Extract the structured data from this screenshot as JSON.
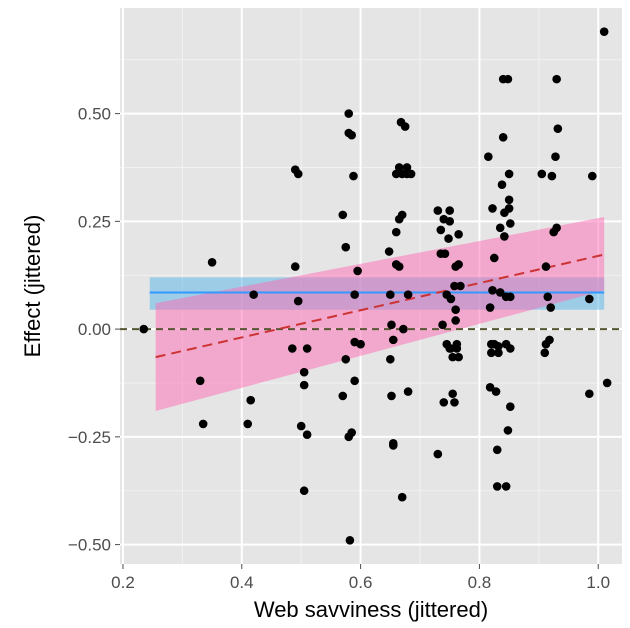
{
  "chart_data": {
    "type": "scatter",
    "xlabel": "Web savviness (jittered)",
    "ylabel": "Effect (jittered)",
    "xlim": [
      0.195,
      1.04
    ],
    "ylim": [
      -0.545,
      0.745
    ],
    "x_ticks": [
      0.2,
      0.4,
      0.6,
      0.8,
      1.0
    ],
    "x_tick_labels": [
      "0.2",
      "0.4",
      "0.6",
      "0.8",
      "1.0"
    ],
    "y_ticks": [
      -0.5,
      -0.25,
      0.0,
      0.25,
      0.5
    ],
    "y_tick_labels": [
      "−0.50",
      "−0.25",
      "0.00",
      "0.25",
      "0.50"
    ],
    "grid": true,
    "points": [
      [
        0.235,
        0.0
      ],
      [
        0.33,
        -0.12
      ],
      [
        0.335,
        -0.22
      ],
      [
        0.35,
        0.155
      ],
      [
        0.41,
        -0.22
      ],
      [
        0.415,
        -0.165
      ],
      [
        0.42,
        0.08
      ],
      [
        0.485,
        -0.045
      ],
      [
        0.49,
        0.37
      ],
      [
        0.49,
        0.145
      ],
      [
        0.495,
        0.36
      ],
      [
        0.495,
        0.065
      ],
      [
        0.5,
        -0.225
      ],
      [
        0.505,
        -0.1
      ],
      [
        0.505,
        -0.13
      ],
      [
        0.505,
        -0.375
      ],
      [
        0.51,
        -0.045
      ],
      [
        0.51,
        -0.245
      ],
      [
        0.57,
        -0.155
      ],
      [
        0.57,
        0.265
      ],
      [
        0.575,
        0.19
      ],
      [
        0.575,
        -0.07
      ],
      [
        0.58,
        0.455
      ],
      [
        0.58,
        -0.25
      ],
      [
        0.58,
        0.5
      ],
      [
        0.582,
        -0.49
      ],
      [
        0.585,
        0.45
      ],
      [
        0.585,
        -0.24
      ],
      [
        0.588,
        0.355
      ],
      [
        0.59,
        -0.03
      ],
      [
        0.59,
        -0.12
      ],
      [
        0.59,
        0.08
      ],
      [
        0.595,
        0.135
      ],
      [
        0.6,
        -0.035
      ],
      [
        0.648,
        0.18
      ],
      [
        0.65,
        0.08
      ],
      [
        0.65,
        -0.07
      ],
      [
        0.652,
        0.01
      ],
      [
        0.652,
        -0.155
      ],
      [
        0.655,
        -0.265
      ],
      [
        0.655,
        -0.27
      ],
      [
        0.655,
        -0.025
      ],
      [
        0.66,
        0.225
      ],
      [
        0.66,
        0.36
      ],
      [
        0.66,
        0.15
      ],
      [
        0.665,
        0.375
      ],
      [
        0.665,
        0.255
      ],
      [
        0.665,
        0.145
      ],
      [
        0.668,
        0.48
      ],
      [
        0.67,
        0.36
      ],
      [
        0.67,
        0.265
      ],
      [
        0.67,
        -0.39
      ],
      [
        0.672,
        0.0
      ],
      [
        0.675,
        0.47
      ],
      [
        0.678,
        0.36
      ],
      [
        0.678,
        0.375
      ],
      [
        0.68,
        0.08
      ],
      [
        0.68,
        -0.145
      ],
      [
        0.685,
        0.36
      ],
      [
        0.73,
        -0.29
      ],
      [
        0.73,
        0.275
      ],
      [
        0.735,
        0.175
      ],
      [
        0.735,
        0.23
      ],
      [
        0.738,
        0.01
      ],
      [
        0.74,
        0.255
      ],
      [
        0.74,
        -0.17
      ],
      [
        0.742,
        0.175
      ],
      [
        0.745,
        0.08
      ],
      [
        0.745,
        -0.035
      ],
      [
        0.748,
        0.21
      ],
      [
        0.75,
        0.275
      ],
      [
        0.75,
        0.25
      ],
      [
        0.75,
        -0.045
      ],
      [
        0.752,
        0.07
      ],
      [
        0.752,
        -0.045
      ],
      [
        0.755,
        -0.065
      ],
      [
        0.755,
        -0.15
      ],
      [
        0.758,
        0.1
      ],
      [
        0.758,
        -0.17
      ],
      [
        0.76,
        0.145
      ],
      [
        0.76,
        0.045
      ],
      [
        0.76,
        0.02
      ],
      [
        0.762,
        -0.035
      ],
      [
        0.762,
        -0.045
      ],
      [
        0.765,
        0.22
      ],
      [
        0.765,
        0.15
      ],
      [
        0.765,
        -0.065
      ],
      [
        0.768,
        0.1
      ],
      [
        0.815,
        0.4
      ],
      [
        0.818,
        0.05
      ],
      [
        0.818,
        -0.135
      ],
      [
        0.82,
        -0.035
      ],
      [
        0.82,
        -0.055
      ],
      [
        0.822,
        0.28
      ],
      [
        0.822,
        0.09
      ],
      [
        0.825,
        0.165
      ],
      [
        0.825,
        -0.035
      ],
      [
        0.828,
        -0.145
      ],
      [
        0.83,
        -0.365
      ],
      [
        0.83,
        -0.28
      ],
      [
        0.832,
        -0.055
      ],
      [
        0.832,
        -0.04
      ],
      [
        0.835,
        0.085
      ],
      [
        0.835,
        0.235
      ],
      [
        0.838,
        0.335
      ],
      [
        0.84,
        0.58
      ],
      [
        0.84,
        0.445
      ],
      [
        0.842,
        0.27
      ],
      [
        0.842,
        0.215
      ],
      [
        0.845,
        -0.365
      ],
      [
        0.845,
        -0.035
      ],
      [
        0.845,
        0.075
      ],
      [
        0.848,
        -0.235
      ],
      [
        0.848,
        0.58
      ],
      [
        0.85,
        0.28
      ],
      [
        0.85,
        0.3
      ],
      [
        0.85,
        0.36
      ],
      [
        0.852,
        0.245
      ],
      [
        0.852,
        0.075
      ],
      [
        0.852,
        -0.18
      ],
      [
        0.852,
        -0.045
      ],
      [
        0.905,
        0.36
      ],
      [
        0.91,
        -0.055
      ],
      [
        0.912,
        0.145
      ],
      [
        0.912,
        -0.035
      ],
      [
        0.915,
        0.075
      ],
      [
        0.918,
        -0.025
      ],
      [
        0.92,
        0.05
      ],
      [
        0.922,
        0.355
      ],
      [
        0.925,
        0.225
      ],
      [
        0.928,
        0.4
      ],
      [
        0.93,
        0.235
      ],
      [
        0.93,
        0.58
      ],
      [
        0.932,
        0.465
      ],
      [
        0.985,
        0.07
      ],
      [
        0.985,
        -0.15
      ],
      [
        0.99,
        0.355
      ],
      [
        1.01,
        0.69
      ],
      [
        1.015,
        -0.125
      ]
    ],
    "flat_fit": {
      "x": [
        0.245,
        1.01
      ],
      "y": [
        0.085,
        0.085
      ],
      "ci_lower": [
        0.045,
        0.045
      ],
      "ci_upper": [
        0.12,
        0.12
      ],
      "line_color": "#3399ff",
      "band_color": "#56b4e9"
    },
    "linear_fit": {
      "x": [
        0.255,
        1.01
      ],
      "y": [
        -0.065,
        0.173
      ],
      "ci_lower": [
        -0.19,
        0.09
      ],
      "ci_upper": [
        0.06,
        0.26
      ],
      "line_color": "#cc3333",
      "band_color": "#ff69b4"
    },
    "reference_line": {
      "y": 0.0,
      "color": "#555533"
    }
  }
}
